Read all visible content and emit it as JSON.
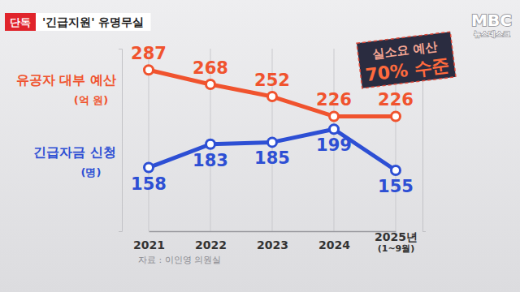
{
  "chart_data": {
    "type": "line",
    "badge": "단독",
    "title": "'긴급지원' 유명무실",
    "categories": [
      "2021",
      "2022",
      "2023",
      "2024",
      "2025년 (1~9월)"
    ],
    "series": [
      {
        "name": "유공자 대부 예산",
        "color": "#f0532e",
        "values": [
          287,
          268,
          252,
          226,
          226
        ],
        "marker": "circle",
        "line_style": "solid"
      },
      {
        "name": "긴급자금 신청",
        "color": "#2d4fd4",
        "values": [
          158,
          183,
          185,
          199,
          155
        ],
        "axis": "y2",
        "marker": "circle",
        "line_style": "solid"
      }
    ],
    "ylabel": "(억 원)",
    "y2label": "(명)",
    "ylim": [
      75,
      315
    ],
    "yticks": [
      75,
      315
    ],
    "y2lim": [
      90,
      285
    ],
    "y2ticks": [
      90,
      285
    ],
    "tick_labels": "x",
    "grid": true,
    "data_labels": true,
    "annotations": [
      "실소요 예산",
      "70% 수준"
    ],
    "source": "자료 : 이인영 의원실"
  },
  "broadcaster": {
    "logo": "MBC",
    "program": "뉴스데스크"
  }
}
